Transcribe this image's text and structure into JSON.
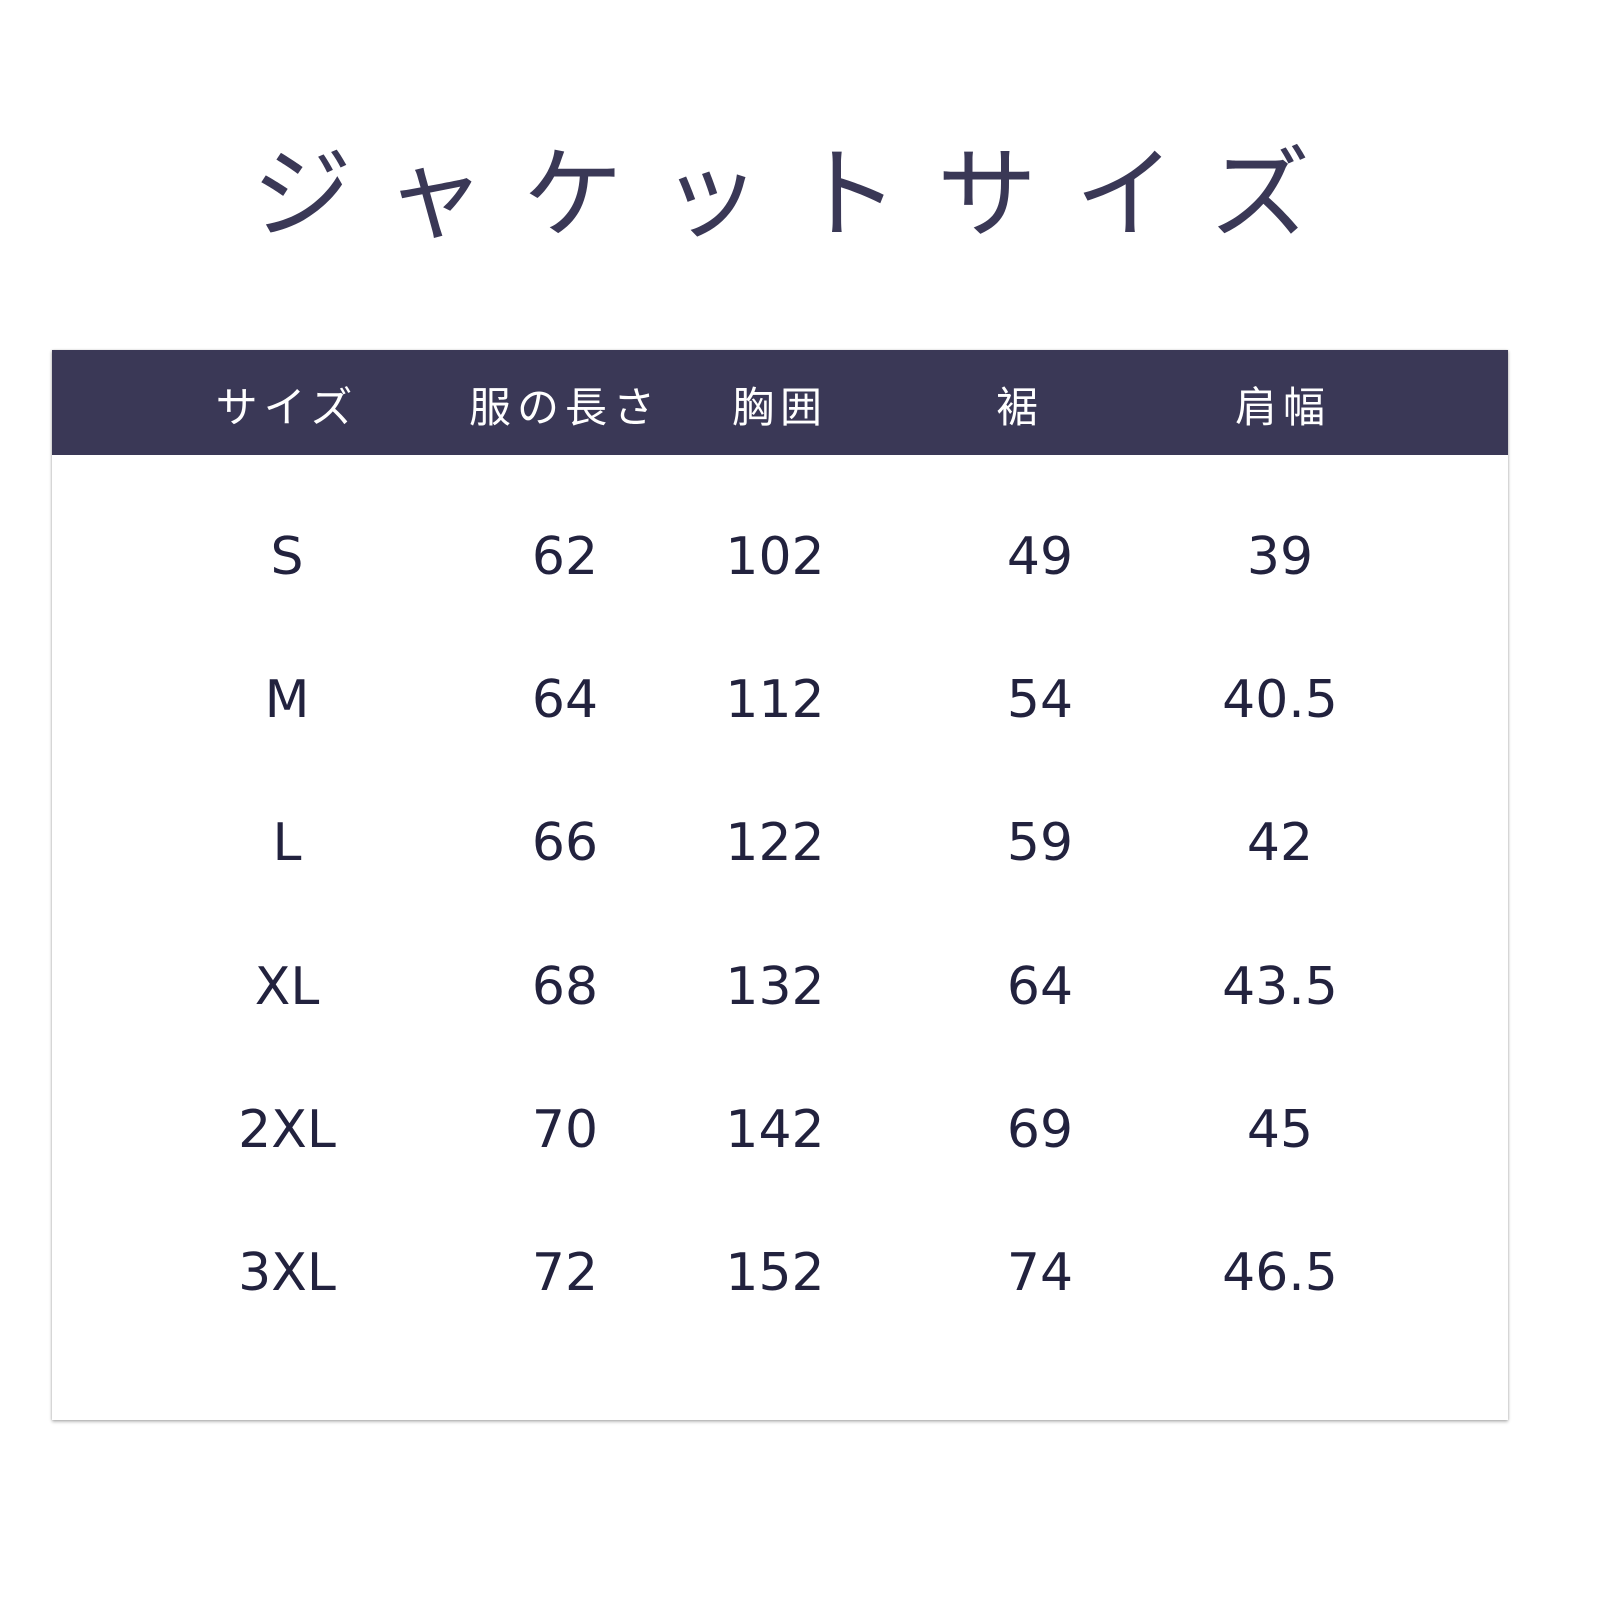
{
  "title": "ジャケットサイズ",
  "colors": {
    "header_bg": "#3a3856",
    "header_text": "#ffffff",
    "body_text": "#22223e"
  },
  "table": {
    "headers": [
      "サイズ",
      "服の長さ",
      "胸囲",
      "裾",
      "肩幅"
    ],
    "rows": [
      [
        "S",
        "62",
        "102",
        "49",
        "39"
      ],
      [
        "M",
        "64",
        "112",
        "54",
        "40.5"
      ],
      [
        "L",
        "66",
        "122",
        "59",
        "42"
      ],
      [
        "XL",
        "68",
        "132",
        "64",
        "43.5"
      ],
      [
        "2XL",
        "70",
        "142",
        "69",
        "45"
      ],
      [
        "3XL",
        "72",
        "152",
        "74",
        "46.5"
      ]
    ]
  }
}
